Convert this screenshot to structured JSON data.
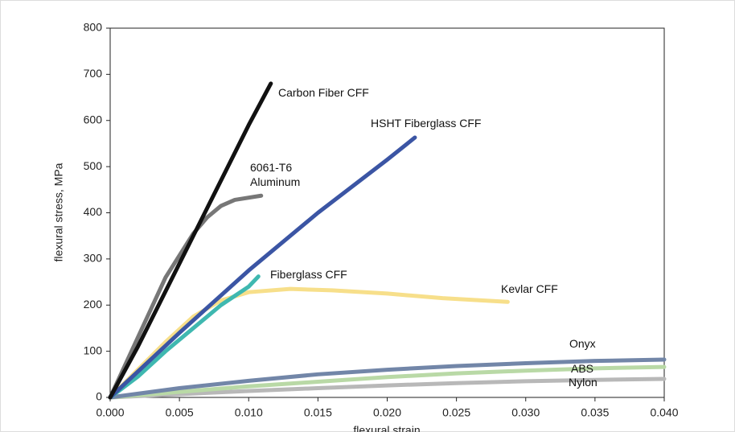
{
  "chart_data": {
    "type": "line",
    "xlabel": "flexural strain",
    "ylabel": "flexural stress, MPa",
    "xlim": [
      0,
      0.04
    ],
    "ylim": [
      0,
      800
    ],
    "xticks": [
      {
        "value": 0,
        "label": "0.000"
      },
      {
        "value": 0.005,
        "label": "0.005"
      },
      {
        "value": 0.01,
        "label": "0.010"
      },
      {
        "value": 0.015,
        "label": "0.015"
      },
      {
        "value": 0.02,
        "label": "0.020"
      },
      {
        "value": 0.025,
        "label": "0.025"
      },
      {
        "value": 0.03,
        "label": "0.030"
      },
      {
        "value": 0.035,
        "label": "0.035"
      },
      {
        "value": 0.04,
        "label": "0.040"
      }
    ],
    "yticks": [
      0,
      100,
      200,
      300,
      400,
      500,
      600,
      700,
      800
    ],
    "series": [
      {
        "name": "Nylon",
        "color": "#b8b8b8",
        "x": [
          0,
          0.005,
          0.01,
          0.015,
          0.02,
          0.025,
          0.03,
          0.035,
          0.04
        ],
        "values": [
          0,
          7,
          14,
          20,
          26,
          31,
          35,
          38,
          40
        ]
      },
      {
        "name": "ABS",
        "color": "#b9d9a6",
        "x": [
          0,
          0.005,
          0.01,
          0.015,
          0.02,
          0.025,
          0.03,
          0.035,
          0.04
        ],
        "values": [
          0,
          12,
          24,
          34,
          44,
          52,
          58,
          63,
          66
        ]
      },
      {
        "name": "Onyx",
        "color": "#7286a8",
        "x": [
          0,
          0.005,
          0.01,
          0.015,
          0.02,
          0.025,
          0.03,
          0.035,
          0.04
        ],
        "values": [
          0,
          20,
          36,
          50,
          60,
          68,
          74,
          79,
          82
        ]
      },
      {
        "name": "Kevlar CFF",
        "color": "#f7df8a",
        "x": [
          0,
          0.002,
          0.004,
          0.006,
          0.008,
          0.01,
          0.013,
          0.016,
          0.02,
          0.024,
          0.0287
        ],
        "values": [
          0,
          60,
          120,
          175,
          210,
          228,
          235,
          232,
          225,
          215,
          207
        ]
      },
      {
        "name": "Fiberglass CFF",
        "color": "#3fb8b0",
        "x": [
          0,
          0.002,
          0.004,
          0.006,
          0.008,
          0.01,
          0.0107
        ],
        "values": [
          0,
          45,
          100,
          150,
          200,
          240,
          262
        ]
      },
      {
        "name": "HSHT Fiberglass CFF",
        "color": "#3b55a4",
        "x": [
          0,
          0.005,
          0.01,
          0.015,
          0.02,
          0.022
        ],
        "values": [
          0,
          140,
          275,
          400,
          515,
          563
        ]
      },
      {
        "name": "6061-T6 Aluminum",
        "color": "#777777",
        "x": [
          0,
          0.002,
          0.004,
          0.006,
          0.007,
          0.008,
          0.009,
          0.0109
        ],
        "values": [
          0,
          130,
          260,
          355,
          390,
          415,
          428,
          437
        ]
      },
      {
        "name": "Carbon Fiber CFF",
        "color": "#111111",
        "x": [
          0,
          0.002,
          0.004,
          0.006,
          0.008,
          0.01,
          0.0116
        ],
        "values": [
          0,
          110,
          230,
          350,
          470,
          590,
          680
        ]
      }
    ]
  }
}
